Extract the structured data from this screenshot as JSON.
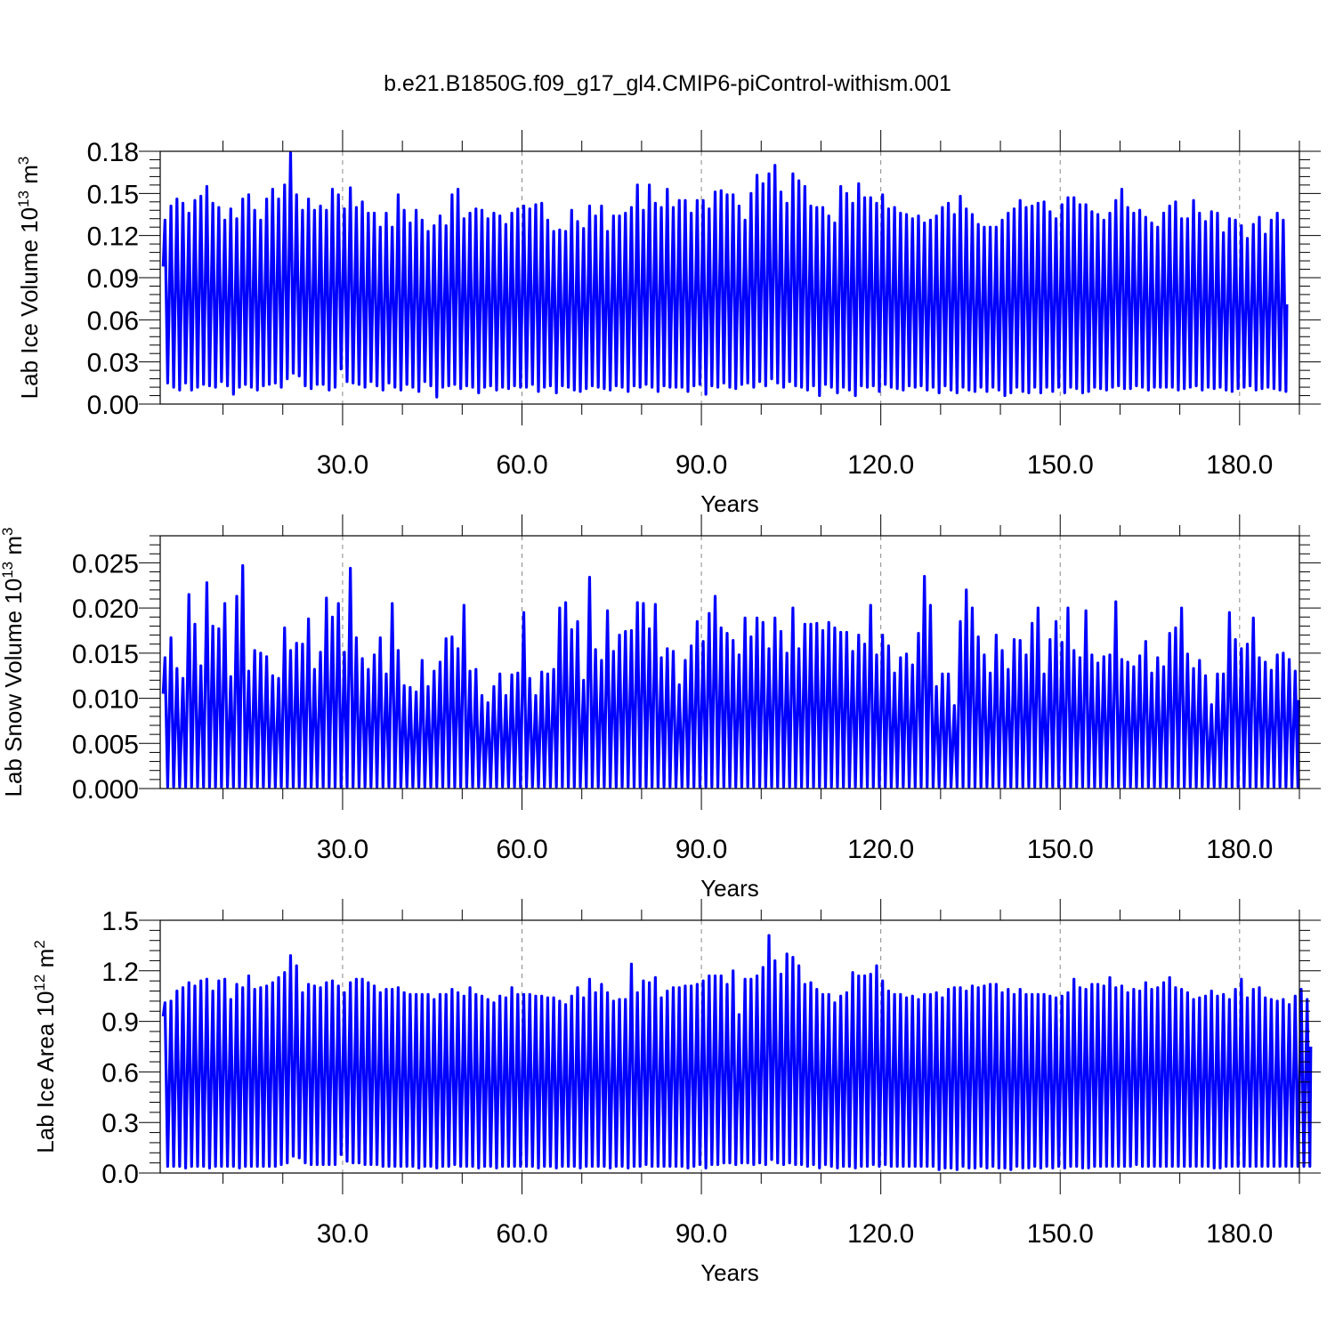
{
  "figure": {
    "title": "b.e21.B1850G.f09_g17_gl4.CMIP6-piControl-withism.001"
  },
  "chart_data": [
    {
      "type": "line",
      "ylabel_prefix": "Lab Ice Volume 10",
      "ylabel_exponent": "13",
      "ylabel_unit": "m",
      "ylabel_unit_exponent": "3",
      "xlabel": "Years",
      "xlim": [
        -0.5,
        190
      ],
      "ylim": [
        0.0,
        0.18
      ],
      "xticks": [
        30,
        60,
        90,
        120,
        150,
        180
      ],
      "xtick_labels": [
        "30.0",
        "60.0",
        "90.0",
        "120.0",
        "150.0",
        "180.0"
      ],
      "yticks": [
        0.0,
        0.03,
        0.06,
        0.09,
        0.12,
        0.15,
        0.18
      ],
      "ytick_labels": [
        "0.00",
        "0.03",
        "0.06",
        "0.09",
        "0.12",
        "0.15",
        "0.18"
      ],
      "grid": "vertical-dashed",
      "series_color": "#0000ff",
      "seasonal_cycle": {
        "start_value": 0.098,
        "end_value": 0.071,
        "annual_maxima": [
          0.131,
          0.141,
          0.146,
          0.143,
          0.136,
          0.145,
          0.148,
          0.155,
          0.143,
          0.14,
          0.131,
          0.139,
          0.132,
          0.146,
          0.149,
          0.138,
          0.131,
          0.146,
          0.153,
          0.146,
          0.156,
          0.179,
          0.149,
          0.138,
          0.146,
          0.138,
          0.141,
          0.138,
          0.153,
          0.149,
          0.139,
          0.154,
          0.14,
          0.144,
          0.136,
          0.136,
          0.126,
          0.136,
          0.126,
          0.149,
          0.138,
          0.129,
          0.138,
          0.131,
          0.123,
          0.127,
          0.134,
          0.127,
          0.149,
          0.153,
          0.132,
          0.136,
          0.139,
          0.138,
          0.132,
          0.136,
          0.134,
          0.128,
          0.136,
          0.139,
          0.141,
          0.139,
          0.142,
          0.143,
          0.131,
          0.123,
          0.124,
          0.123,
          0.138,
          0.13,
          0.125,
          0.141,
          0.134,
          0.141,
          0.123,
          0.134,
          0.134,
          0.136,
          0.14,
          0.156,
          0.138,
          0.156,
          0.143,
          0.14,
          0.153,
          0.14,
          0.145,
          0.145,
          0.136,
          0.145,
          0.145,
          0.139,
          0.151,
          0.152,
          0.149,
          0.149,
          0.141,
          0.131,
          0.15,
          0.163,
          0.157,
          0.164,
          0.17,
          0.151,
          0.143,
          0.164,
          0.159,
          0.155,
          0.141,
          0.14,
          0.14,
          0.134,
          0.129,
          0.155,
          0.15,
          0.143,
          0.157,
          0.147,
          0.147,
          0.143,
          0.149,
          0.139,
          0.14,
          0.136,
          0.135,
          0.132,
          0.134,
          0.129,
          0.131,
          0.134,
          0.14,
          0.143,
          0.135,
          0.148,
          0.139,
          0.135,
          0.128,
          0.126,
          0.126,
          0.126,
          0.131,
          0.136,
          0.139,
          0.145,
          0.14,
          0.141,
          0.143,
          0.144,
          0.137,
          0.132,
          0.142,
          0.147,
          0.147,
          0.142,
          0.142,
          0.137,
          0.135,
          0.131,
          0.136,
          0.145,
          0.153,
          0.14,
          0.136,
          0.138,
          0.133,
          0.129,
          0.126,
          0.136,
          0.141,
          0.144,
          0.132,
          0.132,
          0.145,
          0.136,
          0.13,
          0.137,
          0.136,
          0.122,
          0.132,
          0.131,
          0.127,
          0.118,
          0.128,
          0.133,
          0.121,
          0.131,
          0.136,
          0.131
        ],
        "annual_minima": [
          0.015,
          0.012,
          0.01,
          0.015,
          0.01,
          0.012,
          0.014,
          0.013,
          0.012,
          0.016,
          0.013,
          0.007,
          0.012,
          0.014,
          0.012,
          0.01,
          0.013,
          0.014,
          0.015,
          0.012,
          0.018,
          0.022,
          0.02,
          0.013,
          0.011,
          0.014,
          0.014,
          0.01,
          0.012,
          0.025,
          0.016,
          0.015,
          0.014,
          0.012,
          0.016,
          0.013,
          0.01,
          0.015,
          0.012,
          0.01,
          0.014,
          0.012,
          0.009,
          0.016,
          0.013,
          0.005,
          0.012,
          0.013,
          0.014,
          0.011,
          0.013,
          0.012,
          0.008,
          0.012,
          0.013,
          0.01,
          0.012,
          0.011,
          0.013,
          0.012,
          0.012,
          0.014,
          0.009,
          0.012,
          0.013,
          0.008,
          0.013,
          0.012,
          0.01,
          0.009,
          0.011,
          0.013,
          0.012,
          0.011,
          0.01,
          0.013,
          0.012,
          0.009,
          0.013,
          0.012,
          0.014,
          0.012,
          0.009,
          0.013,
          0.012,
          0.012,
          0.012,
          0.009,
          0.013,
          0.014,
          0.007,
          0.013,
          0.012,
          0.015,
          0.012,
          0.011,
          0.014,
          0.015,
          0.012,
          0.016,
          0.013,
          0.018,
          0.015,
          0.012,
          0.016,
          0.013,
          0.012,
          0.01,
          0.013,
          0.006,
          0.014,
          0.012,
          0.008,
          0.012,
          0.01,
          0.006,
          0.013,
          0.012,
          0.013,
          0.009,
          0.014,
          0.012,
          0.011,
          0.01,
          0.013,
          0.012,
          0.013,
          0.01,
          0.012,
          0.008,
          0.013,
          0.01,
          0.008,
          0.012,
          0.01,
          0.009,
          0.012,
          0.009,
          0.012,
          0.01,
          0.006,
          0.008,
          0.012,
          0.009,
          0.008,
          0.012,
          0.008,
          0.012,
          0.009,
          0.012,
          0.008,
          0.012,
          0.011,
          0.008,
          0.009,
          0.012,
          0.011,
          0.01,
          0.012,
          0.013,
          0.011,
          0.011,
          0.013,
          0.012,
          0.01,
          0.012,
          0.012,
          0.012,
          0.012,
          0.01,
          0.011,
          0.012,
          0.013,
          0.01,
          0.012,
          0.011,
          0.012,
          0.01,
          0.009,
          0.011,
          0.012,
          0.013,
          0.01,
          0.011,
          0.012,
          0.011,
          0.01,
          0.009,
          0.01,
          0.009
        ],
        "annual_maxima_resampled_to_190_years": true
      }
    },
    {
      "type": "line",
      "ylabel_prefix": "Lab Snow Volume 10",
      "ylabel_exponent": "13",
      "ylabel_unit": "m",
      "ylabel_unit_exponent": "3",
      "xlabel": "Years",
      "xlim": [
        -0.5,
        190
      ],
      "ylim": [
        0.0,
        0.028
      ],
      "xticks": [
        30,
        60,
        90,
        120,
        150,
        180
      ],
      "xtick_labels": [
        "30.0",
        "60.0",
        "90.0",
        "120.0",
        "150.0",
        "180.0"
      ],
      "yticks": [
        0.0,
        0.005,
        0.01,
        0.015,
        0.02,
        0.025
      ],
      "ytick_labels": [
        "0.000",
        "0.005",
        "0.010",
        "0.015",
        "0.020",
        "0.025"
      ],
      "grid": "vertical-dashed",
      "series_color": "#0000ff",
      "seasonal_cycle": {
        "start_value": 0.0105,
        "end_value": 0.0098,
        "annual_maxima": [
          0.0145,
          0.0167,
          0.0133,
          0.0122,
          0.0215,
          0.0182,
          0.0136,
          0.0228,
          0.018,
          0.0177,
          0.0205,
          0.0124,
          0.0213,
          0.0247,
          0.013,
          0.0153,
          0.015,
          0.0146,
          0.0125,
          0.0122,
          0.0178,
          0.0153,
          0.0161,
          0.016,
          0.0188,
          0.0132,
          0.0151,
          0.0211,
          0.019,
          0.0205,
          0.0151,
          0.0244,
          0.0167,
          0.0144,
          0.0132,
          0.0148,
          0.0167,
          0.0127,
          0.0205,
          0.0153,
          0.0114,
          0.0112,
          0.0107,
          0.0142,
          0.0113,
          0.013,
          0.014,
          0.0166,
          0.0168,
          0.0155,
          0.0203,
          0.013,
          0.0132,
          0.0103,
          0.0095,
          0.0113,
          0.0127,
          0.0103,
          0.0126,
          0.0128,
          0.0195,
          0.0122,
          0.0103,
          0.0129,
          0.0127,
          0.0132,
          0.02,
          0.0206,
          0.0176,
          0.0185,
          0.012,
          0.0234,
          0.0154,
          0.0142,
          0.0197,
          0.0152,
          0.017,
          0.0174,
          0.0175,
          0.0206,
          0.0205,
          0.0177,
          0.0204,
          0.0145,
          0.0155,
          0.0152,
          0.0115,
          0.0142,
          0.0158,
          0.0185,
          0.0163,
          0.0194,
          0.0213,
          0.0178,
          0.0172,
          0.0164,
          0.0148,
          0.0189,
          0.0168,
          0.0189,
          0.0184,
          0.0155,
          0.0189,
          0.0174,
          0.015,
          0.02,
          0.0155,
          0.0182,
          0.0182,
          0.0183,
          0.0175,
          0.0184,
          0.0178,
          0.0173,
          0.0173,
          0.0152,
          0.017,
          0.016,
          0.0203,
          0.0148,
          0.017,
          0.0158,
          0.0128,
          0.0145,
          0.0149,
          0.0137,
          0.0172,
          0.0235,
          0.0203,
          0.0113,
          0.0127,
          0.0127,
          0.0092,
          0.0185,
          0.022,
          0.02,
          0.0168,
          0.0148,
          0.0128,
          0.017,
          0.0153,
          0.0132,
          0.0165,
          0.0164,
          0.0148,
          0.0183,
          0.02,
          0.0127,
          0.0165,
          0.0185,
          0.0162,
          0.02,
          0.0153,
          0.0145,
          0.0197,
          0.0148,
          0.0139,
          0.0146,
          0.0148,
          0.0207,
          0.0143,
          0.014,
          0.0135,
          0.0147,
          0.0163,
          0.0128,
          0.0145,
          0.0135,
          0.0172,
          0.0178,
          0.02,
          0.0149,
          0.0133,
          0.0142,
          0.0125,
          0.0093,
          0.0127,
          0.0127,
          0.0195,
          0.0165,
          0.0155,
          0.016,
          0.0189,
          0.0145,
          0.014,
          0.0131,
          0.0148,
          0.015,
          0.0143,
          0.013
        ],
        "annual_minima": [
          0.0002
        ]
      }
    },
    {
      "type": "line",
      "ylabel_prefix": "Lab Ice Area 10",
      "ylabel_exponent": "12",
      "ylabel_unit": "m",
      "ylabel_unit_exponent": "2",
      "xlabel": "Years",
      "xlim": [
        -0.5,
        190
      ],
      "ylim": [
        0.0,
        1.5
      ],
      "xticks": [
        30,
        60,
        90,
        120,
        150,
        180
      ],
      "xtick_labels": [
        "30.0",
        "60.0",
        "90.0",
        "120.0",
        "150.0",
        "180.0"
      ],
      "yticks": [
        0.0,
        0.3,
        0.6,
        0.9,
        1.2,
        1.5
      ],
      "ytick_labels": [
        "0.0",
        "0.3",
        "0.6",
        "0.9",
        "1.2",
        "1.5"
      ],
      "grid": "vertical-dashed",
      "series_color": "#0000ff",
      "seasonal_cycle": {
        "start_value": 0.93,
        "end_value": 0.75,
        "annual_maxima": [
          1.01,
          1.02,
          1.08,
          1.1,
          1.13,
          1.11,
          1.14,
          1.15,
          1.08,
          1.14,
          1.15,
          1.03,
          1.12,
          1.1,
          1.17,
          1.09,
          1.1,
          1.11,
          1.13,
          1.16,
          1.19,
          1.29,
          1.23,
          1.07,
          1.12,
          1.11,
          1.1,
          1.13,
          1.14,
          1.11,
          1.07,
          1.13,
          1.15,
          1.15,
          1.13,
          1.11,
          1.07,
          1.09,
          1.09,
          1.1,
          1.07,
          1.06,
          1.06,
          1.06,
          1.06,
          1.03,
          1.06,
          1.06,
          1.09,
          1.07,
          1.05,
          1.1,
          1.06,
          1.05,
          1.03,
          1.01,
          1.05,
          1.04,
          1.1,
          1.06,
          1.06,
          1.06,
          1.05,
          1.05,
          1.04,
          1.04,
          1.02,
          1.0,
          1.05,
          1.1,
          1.04,
          1.15,
          1.07,
          1.12,
          1.07,
          1.02,
          1.03,
          1.03,
          1.24,
          1.07,
          1.14,
          1.13,
          1.16,
          1.04,
          1.08,
          1.1,
          1.1,
          1.11,
          1.11,
          1.12,
          1.14,
          1.17,
          1.17,
          1.17,
          1.12,
          1.2,
          0.94,
          1.15,
          1.15,
          1.17,
          1.22,
          1.41,
          1.26,
          1.18,
          1.3,
          1.28,
          1.23,
          1.12,
          1.13,
          1.09,
          1.06,
          1.06,
          1.01,
          1.05,
          1.07,
          1.19,
          1.17,
          1.17,
          1.18,
          1.23,
          1.14,
          1.08,
          1.06,
          1.06,
          1.04,
          1.05,
          1.03,
          1.06,
          1.06,
          1.07,
          1.04,
          1.09,
          1.1,
          1.1,
          1.08,
          1.11,
          1.1,
          1.11,
          1.12,
          1.12,
          1.07,
          1.09,
          1.06,
          1.09,
          1.06,
          1.06,
          1.06,
          1.06,
          1.05,
          1.04,
          1.05,
          1.07,
          1.15,
          1.1,
          1.09,
          1.12,
          1.12,
          1.11,
          1.16,
          1.1,
          1.11,
          1.07,
          1.09,
          1.08,
          1.13,
          1.09,
          1.1,
          1.13,
          1.16,
          1.1,
          1.09,
          1.07,
          1.03,
          1.04,
          1.05,
          1.08,
          1.05,
          1.06,
          1.03,
          1.09,
          1.15,
          1.04,
          1.09,
          1.1,
          1.04,
          1.03,
          1.02,
          1.03,
          1.0,
          1.05,
          1.09,
          1.03
        ],
        "annual_minima": [
          0.04,
          0.04,
          0.04,
          0.03,
          0.04,
          0.04,
          0.04,
          0.03,
          0.04,
          0.04,
          0.04,
          0.04,
          0.03,
          0.04,
          0.04,
          0.04,
          0.04,
          0.04,
          0.04,
          0.05,
          0.06,
          0.1,
          0.09,
          0.06,
          0.05,
          0.05,
          0.05,
          0.05,
          0.05,
          0.11,
          0.07,
          0.06,
          0.06,
          0.05,
          0.05,
          0.05,
          0.04,
          0.04,
          0.04,
          0.04,
          0.04,
          0.04,
          0.03,
          0.04,
          0.04,
          0.03,
          0.04,
          0.04,
          0.05,
          0.04,
          0.04,
          0.04,
          0.03,
          0.04,
          0.04,
          0.03,
          0.04,
          0.04,
          0.04,
          0.04,
          0.04,
          0.04,
          0.03,
          0.04,
          0.04,
          0.03,
          0.04,
          0.04,
          0.04,
          0.03,
          0.04,
          0.04,
          0.04,
          0.04,
          0.03,
          0.04,
          0.04,
          0.03,
          0.04,
          0.04,
          0.05,
          0.04,
          0.04,
          0.04,
          0.04,
          0.04,
          0.04,
          0.03,
          0.04,
          0.05,
          0.03,
          0.05,
          0.05,
          0.06,
          0.06,
          0.05,
          0.06,
          0.06,
          0.05,
          0.06,
          0.05,
          0.08,
          0.06,
          0.05,
          0.06,
          0.05,
          0.05,
          0.04,
          0.05,
          0.03,
          0.05,
          0.04,
          0.03,
          0.04,
          0.04,
          0.03,
          0.04,
          0.04,
          0.05,
          0.04,
          0.05,
          0.04,
          0.04,
          0.04,
          0.04,
          0.04,
          0.04,
          0.04,
          0.04,
          0.02,
          0.03,
          0.03,
          0.02,
          0.04,
          0.03,
          0.03,
          0.04,
          0.03,
          0.04,
          0.03,
          0.03,
          0.02,
          0.04,
          0.03,
          0.03,
          0.04,
          0.03,
          0.04,
          0.03,
          0.04,
          0.03,
          0.04,
          0.04,
          0.03,
          0.03,
          0.04,
          0.04,
          0.04,
          0.04,
          0.04,
          0.04,
          0.04,
          0.05,
          0.04,
          0.04,
          0.04,
          0.04,
          0.04,
          0.04,
          0.04,
          0.04,
          0.04,
          0.04,
          0.04,
          0.04,
          0.03,
          0.03,
          0.04,
          0.04,
          0.04,
          0.04,
          0.04,
          0.04,
          0.04,
          0.04,
          0.04,
          0.04,
          0.04,
          0.04,
          0.04,
          0.04,
          0.04
        ]
      }
    }
  ]
}
